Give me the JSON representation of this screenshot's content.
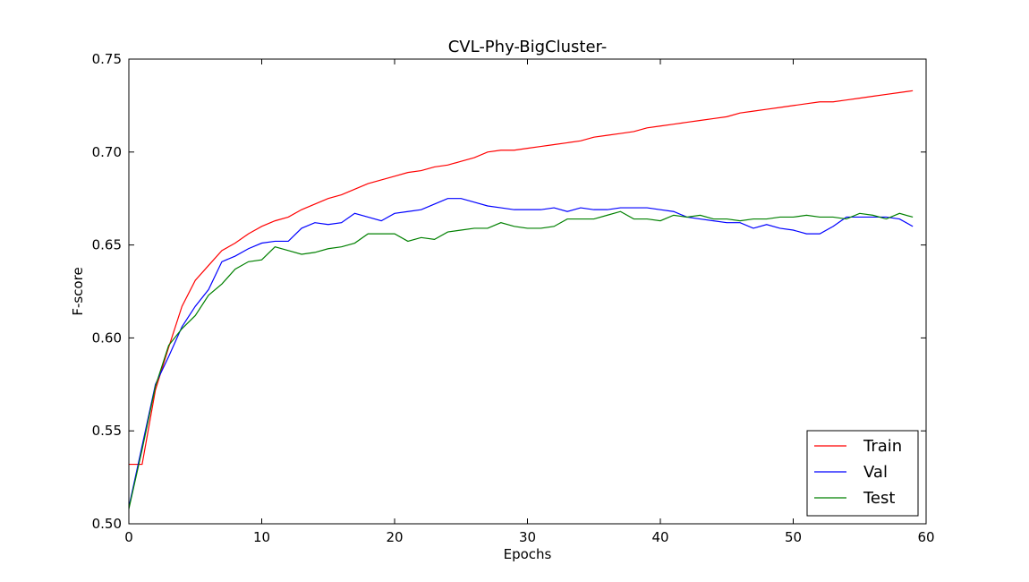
{
  "chart_data": {
    "type": "line",
    "title": "CVL-Phy-BigCluster-",
    "xlabel": "Epochs",
    "ylabel": "F-score",
    "xlim": [
      0,
      60
    ],
    "ylim": [
      0.5,
      0.75
    ],
    "xticks": [
      0,
      10,
      20,
      30,
      40,
      50,
      60
    ],
    "yticks": [
      0.5,
      0.55,
      0.6,
      0.65,
      0.7,
      0.75
    ],
    "xtick_labels": [
      "0",
      "10",
      "20",
      "30",
      "40",
      "50",
      "60"
    ],
    "ytick_labels": [
      "0.50",
      "0.55",
      "0.60",
      "0.65",
      "0.70",
      "0.75"
    ],
    "grid": false,
    "legend_position": "bottom-right",
    "x": [
      0,
      1,
      2,
      3,
      4,
      5,
      6,
      7,
      8,
      9,
      10,
      11,
      12,
      13,
      14,
      15,
      16,
      17,
      18,
      19,
      20,
      21,
      22,
      23,
      24,
      25,
      26,
      27,
      28,
      29,
      30,
      31,
      32,
      33,
      34,
      35,
      36,
      37,
      38,
      39,
      40,
      41,
      42,
      43,
      44,
      45,
      46,
      47,
      48,
      49,
      50,
      51,
      52,
      53,
      54,
      55,
      56,
      57,
      58,
      59
    ],
    "series": [
      {
        "name": "Train",
        "color": "#ff0000",
        "values": [
          0.532,
          0.532,
          0.572,
          0.595,
          0.617,
          0.631,
          0.639,
          0.647,
          0.651,
          0.656,
          0.66,
          0.663,
          0.665,
          0.669,
          0.672,
          0.675,
          0.677,
          0.68,
          0.683,
          0.685,
          0.687,
          0.689,
          0.69,
          0.692,
          0.693,
          0.695,
          0.697,
          0.7,
          0.701,
          0.701,
          0.702,
          0.703,
          0.704,
          0.705,
          0.706,
          0.708,
          0.709,
          0.71,
          0.711,
          0.713,
          0.714,
          0.715,
          0.716,
          0.717,
          0.718,
          0.719,
          0.721,
          0.722,
          0.723,
          0.724,
          0.725,
          0.726,
          0.727,
          0.727,
          0.728,
          0.729,
          0.73,
          0.731,
          0.732,
          0.733
        ]
      },
      {
        "name": "Val",
        "color": "#0000ff",
        "values": [
          0.509,
          0.542,
          0.575,
          0.59,
          0.606,
          0.617,
          0.626,
          0.641,
          0.644,
          0.648,
          0.651,
          0.652,
          0.652,
          0.659,
          0.662,
          0.661,
          0.662,
          0.667,
          0.665,
          0.663,
          0.667,
          0.668,
          0.669,
          0.672,
          0.675,
          0.675,
          0.673,
          0.671,
          0.67,
          0.669,
          0.669,
          0.669,
          0.67,
          0.668,
          0.67,
          0.669,
          0.669,
          0.67,
          0.67,
          0.67,
          0.669,
          0.668,
          0.665,
          0.664,
          0.663,
          0.662,
          0.662,
          0.659,
          0.661,
          0.659,
          0.658,
          0.656,
          0.656,
          0.66,
          0.665,
          0.665,
          0.665,
          0.665,
          0.664,
          0.66
        ]
      },
      {
        "name": "Test",
        "color": "#008000",
        "values": [
          0.508,
          0.54,
          0.574,
          0.596,
          0.605,
          0.612,
          0.623,
          0.629,
          0.637,
          0.641,
          0.642,
          0.649,
          0.647,
          0.645,
          0.646,
          0.648,
          0.649,
          0.651,
          0.656,
          0.656,
          0.656,
          0.652,
          0.654,
          0.653,
          0.657,
          0.658,
          0.659,
          0.659,
          0.662,
          0.66,
          0.659,
          0.659,
          0.66,
          0.664,
          0.664,
          0.664,
          0.666,
          0.668,
          0.664,
          0.664,
          0.663,
          0.666,
          0.665,
          0.666,
          0.664,
          0.664,
          0.663,
          0.664,
          0.664,
          0.665,
          0.665,
          0.666,
          0.665,
          0.665,
          0.664,
          0.667,
          0.666,
          0.664,
          0.667,
          0.665
        ]
      }
    ]
  }
}
